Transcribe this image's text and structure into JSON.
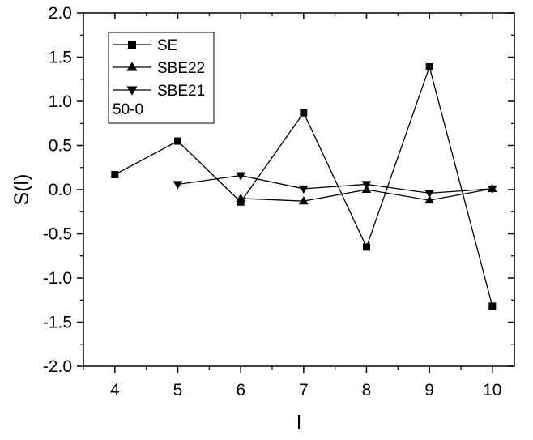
{
  "chart_data": {
    "type": "line",
    "xlabel": "l",
    "ylabel": "S(l)",
    "xlim": [
      3.5,
      10.35
    ],
    "ylim": [
      -2.0,
      2.0
    ],
    "x_ticks": [
      4,
      5,
      6,
      7,
      8,
      9,
      10
    ],
    "y_ticks": [
      2.0,
      1.5,
      1.0,
      0.5,
      0.0,
      -0.5,
      -1.0,
      -1.5,
      -2.0
    ],
    "y_tick_labels": [
      "2.0",
      "1.5",
      "1.0",
      "0.5",
      "0.0",
      "-0.5",
      "-1.0",
      "-1.5",
      "-2.0"
    ],
    "grid": false,
    "legend_position": "top-left",
    "legend_note": "50-0",
    "series": [
      {
        "name": "SE",
        "marker": "square",
        "x": [
          4,
          5,
          6,
          7,
          8,
          9,
          10
        ],
        "y": [
          0.17,
          0.55,
          -0.14,
          0.87,
          -0.65,
          1.39,
          -1.32
        ]
      },
      {
        "name": "SBE22",
        "marker": "triangle-up",
        "x": [
          6,
          7,
          8,
          9,
          10
        ],
        "y": [
          -0.1,
          -0.13,
          0.0,
          -0.12,
          0.01
        ]
      },
      {
        "name": "SBE21",
        "marker": "triangle-down",
        "x": [
          5,
          6,
          7,
          8,
          9,
          10
        ],
        "y": [
          0.06,
          0.16,
          0.01,
          0.06,
          -0.04,
          0.01
        ]
      }
    ]
  }
}
